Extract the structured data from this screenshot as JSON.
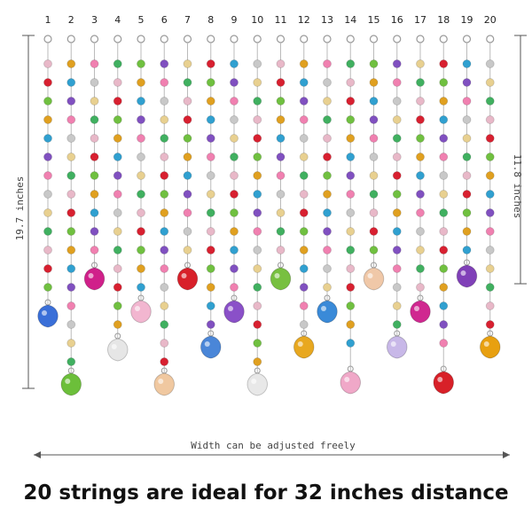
{
  "string_labels": [
    "1",
    "2",
    "3",
    "4",
    "5",
    "6",
    "7",
    "8",
    "9",
    "10",
    "11",
    "12",
    "13",
    "14",
    "15",
    "16",
    "17",
    "18",
    "19",
    "20"
  ],
  "dimensions": {
    "height_left": "19.7  inches",
    "height_right": "11.8 inches",
    "width": "Width can be adjusted freely"
  },
  "caption": "20 strings are ideal for 32 inches distance"
}
